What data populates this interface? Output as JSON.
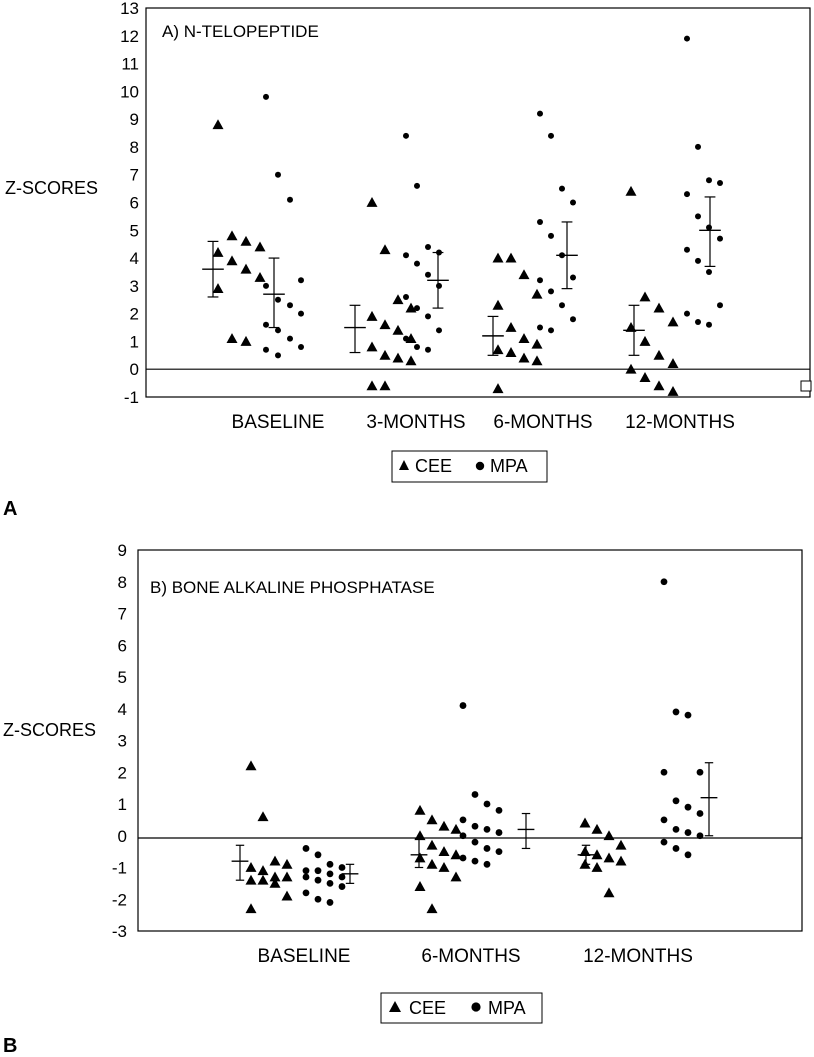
{
  "chart_data": [
    {
      "type": "scatter",
      "panel_letter": "A",
      "title": "A)  N-TELOPEPTIDE",
      "ylabel": "Z-SCORES",
      "ylim": [
        -1,
        13
      ],
      "yticks": [
        -1,
        0,
        1,
        2,
        3,
        4,
        5,
        6,
        7,
        8,
        9,
        10,
        11,
        12,
        13
      ],
      "categories": [
        "BASELINE",
        "3-MONTHS",
        "6-MONTHS",
        "12-MONTHS"
      ],
      "grid": false,
      "reference_line_y": 0,
      "legend_position": "bottom",
      "legend": [
        "CEE",
        "MPA"
      ],
      "series": [
        {
          "name": "CEE",
          "marker": "triangle",
          "groups": [
            [
              8.8,
              4.8,
              4.6,
              4.4,
              4.2,
              3.9,
              3.6,
              3.3,
              2.9,
              1.1,
              1.0
            ],
            [
              6.0,
              4.3,
              2.5,
              2.2,
              1.9,
              1.6,
              1.4,
              1.1,
              0.8,
              0.5,
              0.4,
              0.3,
              -0.6,
              -0.6
            ],
            [
              4.0,
              4.0,
              3.4,
              2.7,
              2.3,
              1.5,
              1.1,
              0.9,
              0.7,
              0.6,
              0.4,
              0.3,
              -0.7
            ],
            [
              6.4,
              2.6,
              2.2,
              1.7,
              1.5,
              1.0,
              0.5,
              0.2,
              0.0,
              -0.3,
              -0.6,
              -0.8
            ]
          ],
          "mean": [
            3.6,
            1.5,
            1.2,
            1.4
          ],
          "error": [
            [
              2.6,
              4.6
            ],
            [
              0.6,
              2.3
            ],
            [
              0.5,
              1.9
            ],
            [
              0.5,
              2.3
            ]
          ]
        },
        {
          "name": "MPA",
          "marker": "circle",
          "groups": [
            [
              9.8,
              7.0,
              6.1,
              3.2,
              3.0,
              2.5,
              2.3,
              2.0,
              1.6,
              1.4,
              1.1,
              0.8,
              0.7,
              0.5
            ],
            [
              8.4,
              6.6,
              4.4,
              4.2,
              4.1,
              3.8,
              3.4,
              3.0,
              2.6,
              2.2,
              1.9,
              1.4,
              1.1,
              0.8,
              0.7
            ],
            [
              9.2,
              8.4,
              6.5,
              6.0,
              5.3,
              4.8,
              4.1,
              3.3,
              3.2,
              2.8,
              2.3,
              1.8,
              1.5,
              1.4
            ],
            [
              11.9,
              8.0,
              6.8,
              6.7,
              6.3,
              5.5,
              5.1,
              4.7,
              4.3,
              3.9,
              3.5,
              2.3,
              2.0,
              1.7,
              1.6
            ]
          ],
          "mean": [
            2.7,
            3.2,
            4.1,
            5.0
          ],
          "error": [
            [
              1.5,
              4.0
            ],
            [
              2.2,
              4.2
            ],
            [
              2.9,
              5.3
            ],
            [
              3.7,
              6.2
            ]
          ]
        }
      ]
    },
    {
      "type": "scatter",
      "panel_letter": "B",
      "title": "B)  BONE ALKALINE PHOSPHATASE",
      "ylabel": "Z-SCORES",
      "ylim": [
        -3,
        9
      ],
      "yticks": [
        -3,
        -2,
        -1,
        0,
        1,
        2,
        3,
        4,
        5,
        6,
        7,
        8,
        9
      ],
      "categories": [
        "BASELINE",
        "6-MONTHS",
        "12-MONTHS"
      ],
      "grid": false,
      "reference_line_y": 0,
      "legend_position": "bottom",
      "legend": [
        "CEE",
        "MPA"
      ],
      "series": [
        {
          "name": "CEE",
          "marker": "triangle",
          "groups": [
            [
              2.2,
              0.6,
              -0.8,
              -0.9,
              -1.0,
              -1.1,
              -1.3,
              -1.3,
              -1.4,
              -1.4,
              -1.5,
              -1.9,
              -2.3
            ],
            [
              0.8,
              0.5,
              0.3,
              0.2,
              0.0,
              -0.3,
              -0.5,
              -0.6,
              -0.7,
              -0.9,
              -1.0,
              -1.3,
              -1.6,
              -2.3
            ],
            [
              0.4,
              0.2,
              0.0,
              -0.3,
              -0.5,
              -0.6,
              -0.7,
              -0.8,
              -0.9,
              -1.0,
              -1.8
            ]
          ],
          "mean": [
            -0.8,
            -0.6,
            -0.6
          ],
          "error": [
            [
              -1.4,
              -0.3
            ],
            [
              -1.0,
              -0.1
            ],
            [
              -0.9,
              -0.3
            ]
          ]
        },
        {
          "name": "MPA",
          "marker": "circle",
          "groups": [
            [
              -0.4,
              -0.6,
              -0.9,
              -1.0,
              -1.1,
              -1.1,
              -1.2,
              -1.3,
              -1.3,
              -1.4,
              -1.5,
              -1.6,
              -1.8,
              -2.0,
              -2.1
            ],
            [
              4.1,
              1.3,
              1.0,
              0.8,
              0.5,
              0.3,
              0.2,
              0.1,
              0.0,
              -0.2,
              -0.4,
              -0.5,
              -0.7,
              -0.8,
              -0.9
            ],
            [
              8.0,
              3.9,
              3.8,
              2.0,
              2.0,
              1.1,
              0.9,
              0.7,
              0.5,
              0.2,
              0.1,
              0.0,
              -0.2,
              -0.4,
              -0.6
            ]
          ],
          "mean": [
            -1.2,
            0.2,
            1.2
          ],
          "error": [
            [
              -1.5,
              -0.9
            ],
            [
              -0.4,
              0.7
            ],
            [
              0.0,
              2.3
            ]
          ]
        }
      ]
    }
  ]
}
